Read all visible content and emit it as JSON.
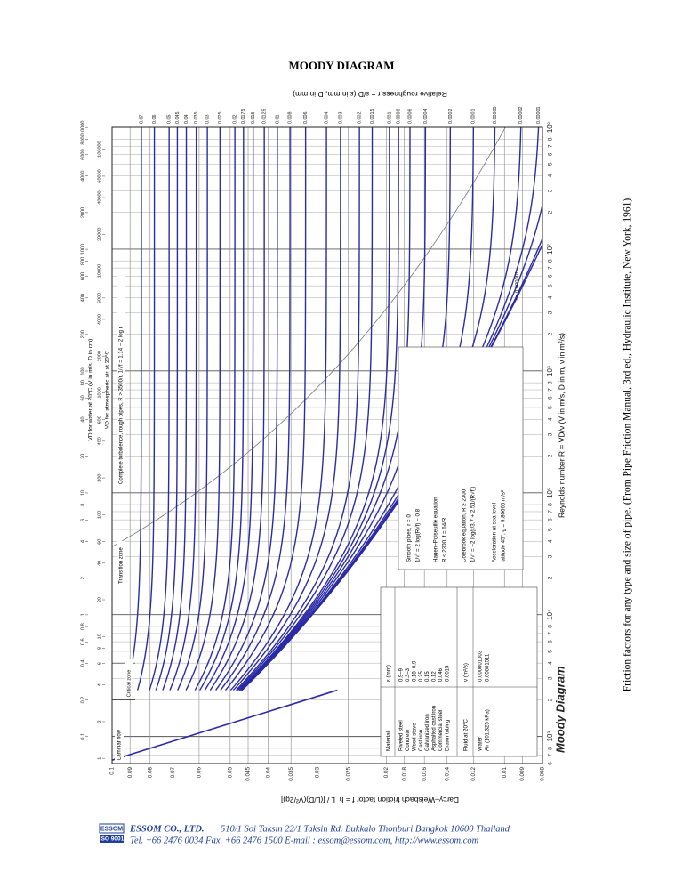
{
  "header": {
    "title": "MOODY DIAGRAM"
  },
  "caption": "Friction factors for any type and size of pipe. (From Pipe Friction Manual, 3rd ed., Hydraulic Institute, New York, 1961)",
  "chart_data": {
    "type": "moody",
    "title": "Moody Diagram",
    "x_label": "Reynolds number R = VD/ν (V in m/s, D in m, ν in m²/s)",
    "y_label": "Darcy–Weisbach friction factor f = h_L / [(L/D)(V²/2g)]",
    "y2_label": "Relative roughness r = ε/D (ε in mm, D in mm)",
    "log_x": true,
    "log_y": true,
    "grid": true,
    "color": "#2b2ba6",
    "xlim": [
      600,
      100000000
    ],
    "xticks": [
      {
        "value": 600,
        "label": "6"
      },
      {
        "value": 700,
        "label": "7"
      },
      {
        "value": 800,
        "label": "8"
      },
      {
        "value": 1000,
        "label": "10³"
      },
      {
        "value": 2000,
        "label": "2"
      },
      {
        "value": 3000,
        "label": "3"
      },
      {
        "value": 4000,
        "label": "4"
      },
      {
        "value": 5000,
        "label": "5"
      },
      {
        "value": 6000,
        "label": "6"
      },
      {
        "value": 7000,
        "label": "7"
      },
      {
        "value": 8000,
        "label": "8"
      },
      {
        "value": 10000,
        "label": "10⁴"
      },
      {
        "value": 20000,
        "label": "2"
      },
      {
        "value": 30000,
        "label": "3"
      },
      {
        "value": 40000,
        "label": "4"
      },
      {
        "value": 50000,
        "label": "5"
      },
      {
        "value": 60000,
        "label": "6"
      },
      {
        "value": 70000,
        "label": "7"
      },
      {
        "value": 80000,
        "label": "8"
      },
      {
        "value": 100000,
        "label": "10⁵"
      },
      {
        "value": 200000,
        "label": "2"
      },
      {
        "value": 300000,
        "label": "3"
      },
      {
        "value": 400000,
        "label": "4"
      },
      {
        "value": 500000,
        "label": "5"
      },
      {
        "value": 600000,
        "label": "6"
      },
      {
        "value": 700000,
        "label": "7"
      },
      {
        "value": 800000,
        "label": "8"
      },
      {
        "value": 1000000,
        "label": "10⁶"
      },
      {
        "value": 2000000,
        "label": "2"
      },
      {
        "value": 3000000,
        "label": "3"
      },
      {
        "value": 4000000,
        "label": "4"
      },
      {
        "value": 5000000,
        "label": "5"
      },
      {
        "value": 6000000,
        "label": "6"
      },
      {
        "value": 7000000,
        "label": "7"
      },
      {
        "value": 8000000,
        "label": "8"
      },
      {
        "value": 10000000,
        "label": "10⁷"
      },
      {
        "value": 20000000,
        "label": "2"
      },
      {
        "value": 30000000,
        "label": "3"
      },
      {
        "value": 40000000,
        "label": "4"
      },
      {
        "value": 50000000,
        "label": "5"
      },
      {
        "value": 60000000,
        "label": "6"
      },
      {
        "value": 70000000,
        "label": "7"
      },
      {
        "value": 80000000,
        "label": "8"
      },
      {
        "value": 100000000,
        "label": "10⁸"
      }
    ],
    "ylim": [
      0.008,
      0.1
    ],
    "yticks": [
      0.1,
      0.09,
      0.08,
      0.07,
      0.06,
      0.05,
      0.045,
      0.04,
      0.035,
      0.03,
      0.025,
      0.02,
      0.018,
      0.016,
      0.014,
      0.012,
      0.01,
      0.009,
      0.008
    ],
    "roughness": [
      0.07,
      0.06,
      0.05,
      0.045,
      0.04,
      0.035,
      0.03,
      0.025,
      0.02,
      0.0175,
      0.015,
      0.0125,
      0.01,
      0.008,
      0.006,
      0.004,
      0.003,
      0.002,
      0.0015,
      0.001,
      0.0008,
      0.0006,
      0.0004,
      0.0002,
      0.0001,
      5e-05,
      2e-05,
      1e-05
    ],
    "inline_curves": [
      {
        "value": 5e-06,
        "label": "r = 0.000005"
      },
      {
        "value": 1e-06,
        "label": "r = 0.000001"
      }
    ],
    "vd_water": {
      "label": "VD for water at 20°C (V in m/s, D in cm)",
      "ticks": [
        0.1,
        0.2,
        0.4,
        0.6,
        0.8,
        1,
        2,
        4,
        6,
        8,
        10,
        20,
        40,
        60,
        80,
        100,
        200,
        400,
        600,
        800,
        1000,
        2000,
        4000,
        6000,
        8000,
        10000
      ]
    },
    "vd_air": {
      "label": "VD for atmospheric air at 20°C",
      "ticks": [
        1,
        2,
        4,
        6,
        8,
        10,
        20,
        40,
        60,
        100,
        200,
        400,
        600,
        1000,
        2000,
        4000,
        6000,
        10000,
        20000,
        40000,
        60000,
        100000
      ]
    },
    "zones": {
      "laminar": "Laminar flow",
      "critical": "Critical zone",
      "transition": "Transition zone",
      "complete": "Complete turbulence, rough pipes, R > 3500/r,  1/√f = 1.14 − 2 log r"
    },
    "equations": [
      "Smooth pipes, r = 0",
      "1/√f = 2 log(R√f) − 0.8",
      "Hagen–Poiseuille equation",
      "R ≤ 2300, f = 64/R",
      "Colebrook equation, R ≥ 2300",
      "1/√f = −2 log(r/3.7 + 2.51/(R√f))",
      "Acceleration at sea level",
      "latitude 45°, g = 9.80665 m/s²"
    ],
    "materials": {
      "header": [
        "Material",
        "ε (mm)"
      ],
      "rows": [
        [
          "Riveted steel",
          "0.9–9"
        ],
        [
          "Concrete",
          "0.3–3"
        ],
        [
          "Wood stave",
          "0.18–0.9"
        ],
        [
          "Cast iron",
          "0.25"
        ],
        [
          "Galvanized iron",
          "0.15"
        ],
        [
          "Asphalted cast iron",
          "0.12"
        ],
        [
          "Commercial steel",
          "0.046"
        ],
        [
          "Drawn tubing",
          "0.0015"
        ]
      ]
    },
    "fluids": {
      "header": [
        "Fluid at 20°C",
        "ν (m²/s)"
      ],
      "rows": [
        [
          "Water",
          "0.000001003"
        ],
        [
          "Air (101.325 kPa)",
          "0.00001511"
        ]
      ]
    }
  },
  "footer": {
    "logo": "ESSOM",
    "certification": "ISO 9001",
    "company": "ESSOM CO., LTD.",
    "address": "510/1 Soi Taksin 22/1  Taksin Rd. Bukkalo Thonburi Bangkok 10600 Thailand",
    "contact": "Tel. +66 2476 0034 Fax. +66 2476 1500 E-mail : essom@essom.com,   http://www.essom.com"
  }
}
